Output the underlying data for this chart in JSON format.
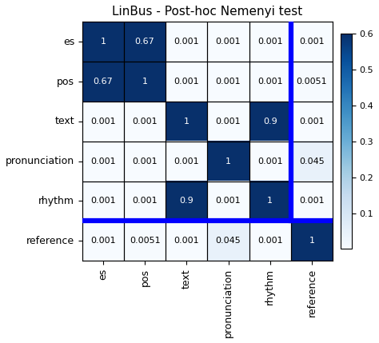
{
  "title": "LinBus - Post-hoc Nemenyi test",
  "labels": [
    "es",
    "pos",
    "text",
    "pronunciation",
    "rhythm",
    "reference"
  ],
  "matrix": [
    [
      1,
      0.67,
      0.001,
      0.001,
      0.001,
      0.001
    ],
    [
      0.67,
      1,
      0.001,
      0.001,
      0.001,
      0.0051
    ],
    [
      0.001,
      0.001,
      1,
      0.001,
      0.9,
      0.001
    ],
    [
      0.001,
      0.001,
      0.001,
      1,
      0.001,
      0.045
    ],
    [
      0.001,
      0.001,
      0.9,
      0.001,
      1,
      0.001
    ],
    [
      0.001,
      0.0051,
      0.001,
      0.045,
      0.001,
      1
    ]
  ],
  "cell_texts": [
    [
      "1",
      "0.67",
      "0.001",
      "0.001",
      "0.001",
      "0.001"
    ],
    [
      "0.67",
      "1",
      "0.001",
      "0.001",
      "0.001",
      "0.0051"
    ],
    [
      "0.001",
      "0.001",
      "1",
      "0.001",
      "0.9",
      "0.001"
    ],
    [
      "0.001",
      "0.001",
      "0.001",
      "1",
      "0.001",
      "0.045"
    ],
    [
      "0.001",
      "0.001",
      "0.9",
      "0.001",
      "1",
      "0.001"
    ],
    [
      "0.001",
      "0.0051",
      "0.001",
      "0.045",
      "0.001",
      "1"
    ]
  ],
  "vmin": 0.001,
  "vmax": 0.6,
  "cmap": "Blues",
  "highlight_color": "blue",
  "highlight_linewidth": 4.5,
  "title_fontsize": 11,
  "label_fontsize": 9,
  "cell_fontsize": 8,
  "colorbar_ticks": [
    0.1,
    0.2,
    0.3,
    0.4,
    0.5,
    0.6
  ]
}
